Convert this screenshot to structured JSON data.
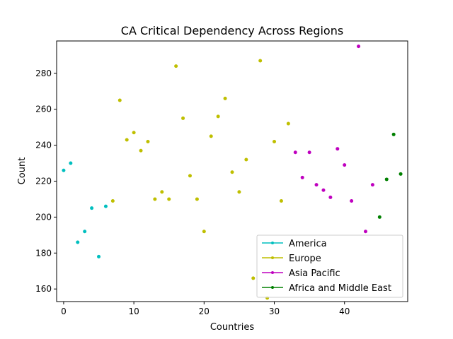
{
  "chart_data": {
    "type": "scatter",
    "title": "CA Critical Dependency Across Regions",
    "xlabel": "Countries",
    "ylabel": "Count",
    "xlim": [
      -1,
      49
    ],
    "ylim": [
      153,
      298
    ],
    "xticks": [
      0,
      10,
      20,
      30,
      40
    ],
    "yticks": [
      160,
      180,
      200,
      220,
      240,
      260,
      280
    ],
    "grid": false,
    "legend_position": "lower-right",
    "series": [
      {
        "name": "America",
        "color": "#00bfbf",
        "points": [
          [
            0,
            226
          ],
          [
            1,
            230
          ],
          [
            2,
            186
          ],
          [
            3,
            192
          ],
          [
            4,
            205
          ],
          [
            5,
            178
          ],
          [
            6,
            206
          ]
        ]
      },
      {
        "name": "Europe",
        "color": "#bfbf00",
        "points": [
          [
            7,
            209
          ],
          [
            8,
            265
          ],
          [
            9,
            243
          ],
          [
            10,
            247
          ],
          [
            11,
            237
          ],
          [
            12,
            242
          ],
          [
            13,
            210
          ],
          [
            14,
            214
          ],
          [
            15,
            210
          ],
          [
            16,
            284
          ],
          [
            17,
            255
          ],
          [
            18,
            223
          ],
          [
            19,
            210
          ],
          [
            20,
            192
          ],
          [
            21,
            245
          ],
          [
            22,
            256
          ],
          [
            23,
            266
          ],
          [
            24,
            225
          ],
          [
            25,
            214
          ],
          [
            26,
            232
          ],
          [
            27,
            166
          ],
          [
            28,
            287
          ],
          [
            29,
            155
          ],
          [
            30,
            242
          ],
          [
            31,
            209
          ],
          [
            32,
            252
          ]
        ]
      },
      {
        "name": "Asia Pacific",
        "color": "#bf00bf",
        "points": [
          [
            33,
            236
          ],
          [
            34,
            222
          ],
          [
            35,
            236
          ],
          [
            36,
            218
          ],
          [
            37,
            215
          ],
          [
            38,
            211
          ],
          [
            39,
            238
          ],
          [
            40,
            229
          ],
          [
            41,
            209
          ],
          [
            42,
            295
          ],
          [
            43,
            192
          ],
          [
            44,
            218
          ]
        ]
      },
      {
        "name": "Africa and Middle East",
        "color": "#008000",
        "points": [
          [
            45,
            200
          ],
          [
            46,
            221
          ],
          [
            47,
            246
          ],
          [
            48,
            224
          ]
        ]
      }
    ]
  }
}
